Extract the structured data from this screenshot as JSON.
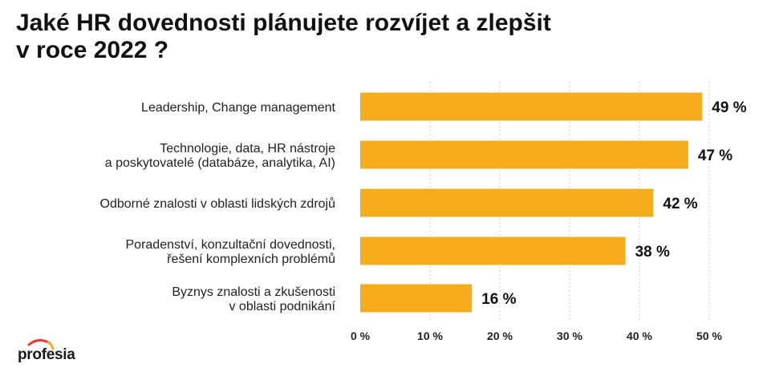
{
  "title_lines": [
    "Jaké HR dovednosti plánujete rozvíjet a zlepšit",
    "v roce 2022 ?"
  ],
  "logo": {
    "text": "profesia",
    "accent_color": "#e63b2e",
    "accent_color_2": "#f5a623"
  },
  "colors": {
    "bar": "#f5ad1b",
    "text": "#111111"
  },
  "chart_data": {
    "type": "bar",
    "orientation": "horizontal",
    "categories": [
      [
        "Leadership, Change management"
      ],
      [
        "Technologie, data, HR nástroje",
        "a poskytovatelé (databáze, analytika, AI)"
      ],
      [
        "Odborné znalosti v oblasti lidských zdrojů"
      ],
      [
        "Poradenství, konzultační dovednosti,",
        "řešení komplexních problémů"
      ],
      [
        "Byznys znalosti a zkušenosti",
        "v oblasti podnikání"
      ]
    ],
    "values": [
      49,
      47,
      42,
      38,
      16
    ],
    "value_labels": [
      "49 %",
      "47 %",
      "42 %",
      "38 %",
      "16 %"
    ],
    "xlim": [
      0,
      50
    ],
    "xticks": [
      0,
      10,
      20,
      30,
      40,
      50
    ],
    "xtick_labels": [
      "0 %",
      "10 %",
      "20 %",
      "30 %",
      "40 %",
      "50 %"
    ],
    "grid": "vertical-dotted"
  }
}
